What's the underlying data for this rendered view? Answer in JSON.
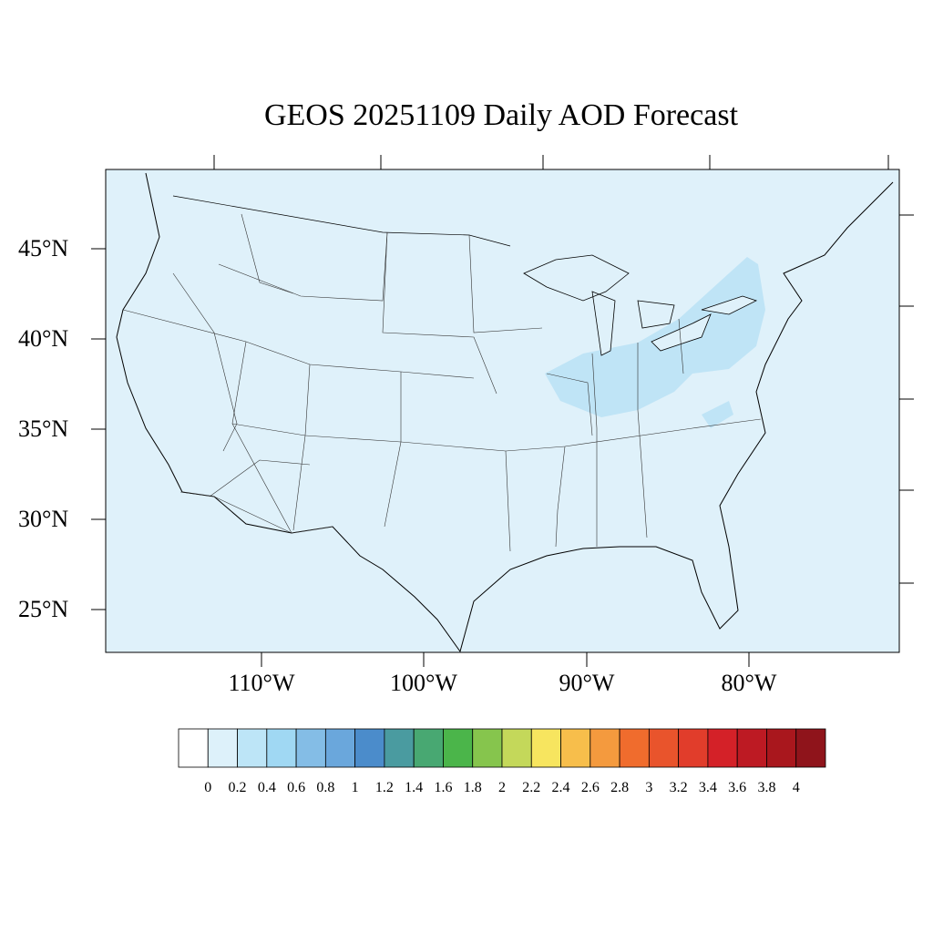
{
  "title": "GEOS 20251109 Daily AOD Forecast",
  "map": {
    "region": "CONUS",
    "background_color": "#dff1fa",
    "lat_labels": [
      "45°N",
      "40°N",
      "35°N",
      "30°N",
      "25°N"
    ],
    "lon_labels": [
      "110°W",
      "100°W",
      "90°W",
      "80°W"
    ],
    "aod_highlight_color": "#bfe4f6"
  },
  "colorbar": {
    "ticks": [
      "0",
      "0.2",
      "0.4",
      "0.6",
      "0.8",
      "1",
      "1.2",
      "1.4",
      "1.6",
      "1.8",
      "2",
      "2.2",
      "2.4",
      "2.6",
      "2.8",
      "3",
      "3.2",
      "3.4",
      "3.6",
      "3.8",
      "4"
    ],
    "colors": [
      "#ffffff",
      "#ddf1fa",
      "#bde5f7",
      "#a0d8f3",
      "#84bde6",
      "#6aa7dc",
      "#4b8ccb",
      "#4a9ba0",
      "#48a872",
      "#4bb54a",
      "#86c54d",
      "#c4d85a",
      "#f7e55f",
      "#f7be4b",
      "#f49a3e",
      "#f06c2d",
      "#e9542c",
      "#e13d2b",
      "#d42128",
      "#bd1a23",
      "#a9171d",
      "#8f141b"
    ]
  }
}
